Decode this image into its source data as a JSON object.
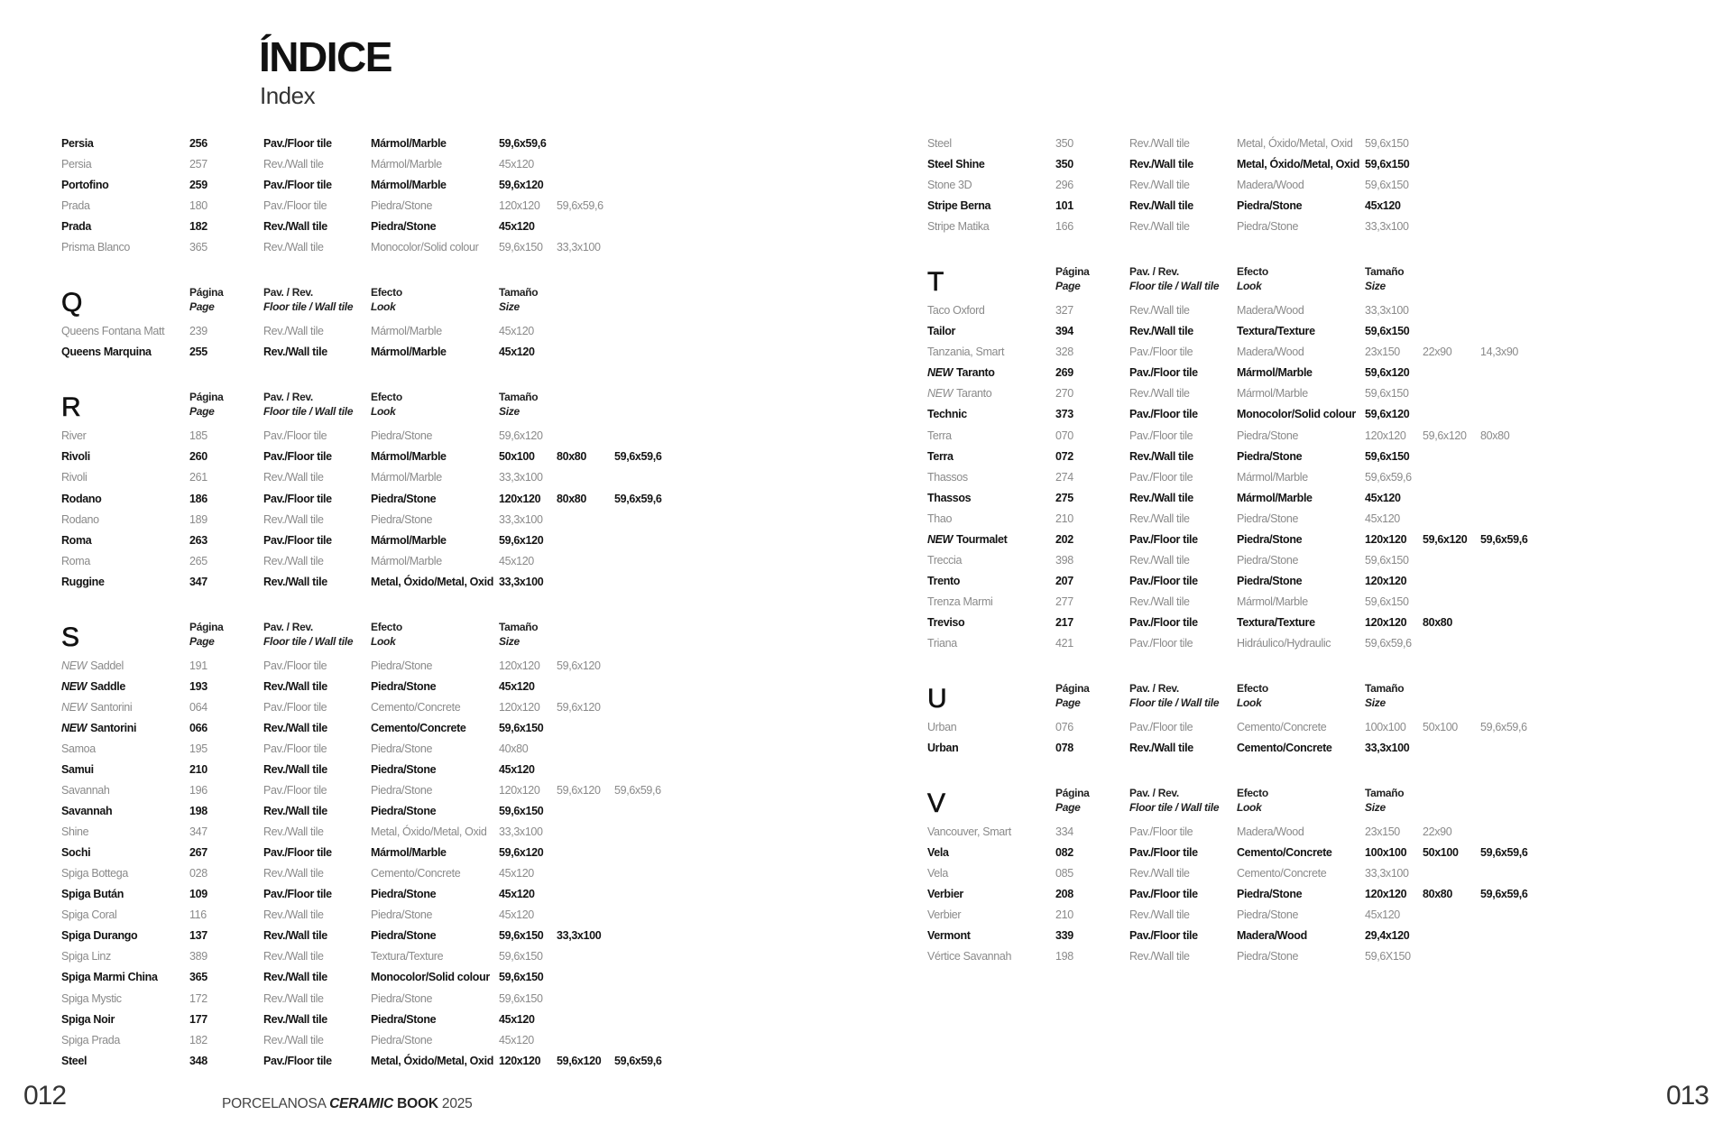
{
  "header": {
    "title": "ÍNDICE",
    "subtitle": "Index"
  },
  "column_headers": {
    "page": [
      "Página",
      "Page"
    ],
    "type": [
      "Pav. / Rev.",
      "Floor tile / Wall tile"
    ],
    "look": [
      "Efecto",
      "Look"
    ],
    "size": [
      "Tamaño",
      "Size"
    ]
  },
  "new_label": "NEW",
  "left_page": {
    "sections": [
      {
        "letter": "",
        "rows": [
          {
            "name": "Persia",
            "page": "256",
            "type": "Pav./Floor tile",
            "look": "Mármol/Marble",
            "sizes": [
              "59,6x59,6"
            ],
            "bold": true
          },
          {
            "name": "Persia",
            "page": "257",
            "type": "Rev./Wall tile",
            "look": "Mármol/Marble",
            "sizes": [
              "45x120"
            ],
            "bold": false
          },
          {
            "name": "Portofino",
            "page": "259",
            "type": "Pav./Floor tile",
            "look": "Mármol/Marble",
            "sizes": [
              "59,6x120"
            ],
            "bold": true
          },
          {
            "name": "Prada",
            "page": "180",
            "type": "Pav./Floor tile",
            "look": "Piedra/Stone",
            "sizes": [
              "120x120",
              "59,6x59,6"
            ],
            "bold": false
          },
          {
            "name": "Prada",
            "page": "182",
            "type": "Rev./Wall tile",
            "look": "Piedra/Stone",
            "sizes": [
              "45x120"
            ],
            "bold": true
          },
          {
            "name": "Prisma Blanco",
            "page": "365",
            "type": "Rev./Wall tile",
            "look": "Monocolor/Solid colour",
            "sizes": [
              "59,6x150",
              "33,3x100"
            ],
            "bold": false
          }
        ]
      },
      {
        "letter": "Q",
        "rows": [
          {
            "name": "Queens Fontana Matt",
            "page": "239",
            "type": "Rev./Wall tile",
            "look": "Mármol/Marble",
            "sizes": [
              "45x120"
            ],
            "bold": false
          },
          {
            "name": "Queens Marquina",
            "page": "255",
            "type": "Rev./Wall tile",
            "look": "Mármol/Marble",
            "sizes": [
              "45x120"
            ],
            "bold": true
          }
        ]
      },
      {
        "letter": "R",
        "rows": [
          {
            "name": "River",
            "page": "185",
            "type": "Pav./Floor tile",
            "look": "Piedra/Stone",
            "sizes": [
              "59,6x120"
            ],
            "bold": false
          },
          {
            "name": "Rivoli",
            "page": "260",
            "type": "Pav./Floor tile",
            "look": "Mármol/Marble",
            "sizes": [
              "50x100",
              "80x80",
              "59,6x59,6"
            ],
            "bold": true
          },
          {
            "name": "Rivoli",
            "page": "261",
            "type": "Rev./Wall tile",
            "look": "Mármol/Marble",
            "sizes": [
              "33,3x100"
            ],
            "bold": false
          },
          {
            "name": "Rodano",
            "page": "186",
            "type": "Pav./Floor tile",
            "look": "Piedra/Stone",
            "sizes": [
              "120x120",
              "80x80",
              "59,6x59,6"
            ],
            "bold": true
          },
          {
            "name": "Rodano",
            "page": "189",
            "type": "Rev./Wall tile",
            "look": "Piedra/Stone",
            "sizes": [
              "33,3x100"
            ],
            "bold": false
          },
          {
            "name": "Roma",
            "page": "263",
            "type": "Pav./Floor tile",
            "look": "Mármol/Marble",
            "sizes": [
              "59,6x120"
            ],
            "bold": true
          },
          {
            "name": "Roma",
            "page": "265",
            "type": "Rev./Wall tile",
            "look": "Mármol/Marble",
            "sizes": [
              "45x120"
            ],
            "bold": false
          },
          {
            "name": "Ruggine",
            "page": "347",
            "type": "Rev./Wall tile",
            "look": "Metal, Óxido/Metal, Oxid",
            "sizes": [
              "33,3x100"
            ],
            "bold": true
          }
        ]
      },
      {
        "letter": "S",
        "rows": [
          {
            "new": true,
            "name": "Saddel",
            "page": "191",
            "type": "Pav./Floor tile",
            "look": "Piedra/Stone",
            "sizes": [
              "120x120",
              "59,6x120"
            ],
            "bold": false
          },
          {
            "new": true,
            "name": "Saddle",
            "page": "193",
            "type": "Rev./Wall tile",
            "look": "Piedra/Stone",
            "sizes": [
              "45x120"
            ],
            "bold": true
          },
          {
            "new": true,
            "name": "Santorini",
            "page": "064",
            "type": "Pav./Floor tile",
            "look": "Cemento/Concrete",
            "sizes": [
              "120x120",
              "59,6x120"
            ],
            "bold": false
          },
          {
            "new": true,
            "name": "Santorini",
            "page": "066",
            "type": "Rev./Wall tile",
            "look": "Cemento/Concrete",
            "sizes": [
              "59,6x150"
            ],
            "bold": true
          },
          {
            "name": "Samoa",
            "page": "195",
            "type": "Pav./Floor tile",
            "look": "Piedra/Stone",
            "sizes": [
              "40x80"
            ],
            "bold": false
          },
          {
            "name": "Samui",
            "page": "210",
            "type": "Rev./Wall tile",
            "look": "Piedra/Stone",
            "sizes": [
              "45x120"
            ],
            "bold": true
          },
          {
            "name": "Savannah",
            "page": "196",
            "type": "Pav./Floor tile",
            "look": "Piedra/Stone",
            "sizes": [
              "120x120",
              "59,6x120",
              "59,6x59,6"
            ],
            "bold": false
          },
          {
            "name": "Savannah",
            "page": "198",
            "type": "Rev./Wall tile",
            "look": "Piedra/Stone",
            "sizes": [
              "59,6x150"
            ],
            "bold": true
          },
          {
            "name": "Shine",
            "page": "347",
            "type": "Rev./Wall tile",
            "look": "Metal, Óxido/Metal, Oxid",
            "sizes": [
              "33,3x100"
            ],
            "bold": false
          },
          {
            "name": "Sochi",
            "page": "267",
            "type": "Pav./Floor tile",
            "look": "Mármol/Marble",
            "sizes": [
              "59,6x120"
            ],
            "bold": true
          },
          {
            "name": "Spiga Bottega",
            "page": "028",
            "type": "Rev./Wall tile",
            "look": "Cemento/Concrete",
            "sizes": [
              "45x120"
            ],
            "bold": false
          },
          {
            "name": "Spiga Bután",
            "page": "109",
            "type": "Pav./Floor tile",
            "look": "Piedra/Stone",
            "sizes": [
              "45x120"
            ],
            "bold": true
          },
          {
            "name": "Spiga Coral",
            "page": "116",
            "type": "Rev./Wall tile",
            "look": "Piedra/Stone",
            "sizes": [
              "45x120"
            ],
            "bold": false
          },
          {
            "name": "Spiga Durango",
            "page": "137",
            "type": "Rev./Wall tile",
            "look": "Piedra/Stone",
            "sizes": [
              "59,6x150",
              "33,3x100"
            ],
            "bold": true
          },
          {
            "name": "Spiga Linz",
            "page": "389",
            "type": "Rev./Wall tile",
            "look": "Textura/Texture",
            "sizes": [
              "59,6x150"
            ],
            "bold": false
          },
          {
            "name": "Spiga Marmi China",
            "page": "365",
            "type": "Rev./Wall tile",
            "look": "Monocolor/Solid colour",
            "sizes": [
              "59,6x150"
            ],
            "bold": true
          },
          {
            "name": "Spiga Mystic",
            "page": "172",
            "type": "Rev./Wall tile",
            "look": "Piedra/Stone",
            "sizes": [
              "59,6x150"
            ],
            "bold": false
          },
          {
            "name": "Spiga Noir",
            "page": "177",
            "type": "Rev./Wall tile",
            "look": "Piedra/Stone",
            "sizes": [
              "45x120"
            ],
            "bold": true
          },
          {
            "name": "Spiga Prada",
            "page": "182",
            "type": "Rev./Wall tile",
            "look": "Piedra/Stone",
            "sizes": [
              "45x120"
            ],
            "bold": false
          },
          {
            "name": "Steel",
            "page": "348",
            "type": "Pav./Floor tile",
            "look": "Metal, Óxido/Metal, Oxid",
            "sizes": [
              "120x120",
              "59,6x120",
              "59,6x59,6"
            ],
            "bold": true
          }
        ]
      }
    ]
  },
  "right_page": {
    "sections": [
      {
        "letter": "",
        "rows": [
          {
            "name": "Steel",
            "page": "350",
            "type": "Rev./Wall tile",
            "look": "Metal, Óxido/Metal, Oxid",
            "sizes": [
              "59,6x150"
            ],
            "bold": false
          },
          {
            "name": "Steel Shine",
            "page": "350",
            "type": "Rev./Wall tile",
            "look": "Metal, Óxido/Metal, Oxid",
            "sizes": [
              "59,6x150"
            ],
            "bold": true
          },
          {
            "name": "Stone 3D",
            "page": "296",
            "type": "Rev./Wall tile",
            "look": "Madera/Wood",
            "sizes": [
              "59,6x150"
            ],
            "bold": false
          },
          {
            "name": "Stripe Berna",
            "page": "101",
            "type": "Rev./Wall tile",
            "look": "Piedra/Stone",
            "sizes": [
              "45x120"
            ],
            "bold": true
          },
          {
            "name": "Stripe Matika",
            "page": "166",
            "type": "Rev./Wall tile",
            "look": "Piedra/Stone",
            "sizes": [
              "33,3x100"
            ],
            "bold": false
          }
        ]
      },
      {
        "letter": "T",
        "rows": [
          {
            "name": "Taco Oxford",
            "page": "327",
            "type": "Rev./Wall tile",
            "look": "Madera/Wood",
            "sizes": [
              "33,3x100"
            ],
            "bold": false
          },
          {
            "name": "Tailor",
            "page": "394",
            "type": "Rev./Wall tile",
            "look": "Textura/Texture",
            "sizes": [
              "59,6x150"
            ],
            "bold": true
          },
          {
            "name": "Tanzania, Smart",
            "page": "328",
            "type": "Pav./Floor tile",
            "look": "Madera/Wood",
            "sizes": [
              "23x150",
              "22x90",
              "14,3x90"
            ],
            "bold": false
          },
          {
            "new": true,
            "name": "Taranto",
            "page": "269",
            "type": "Pav./Floor tile",
            "look": "Mármol/Marble",
            "sizes": [
              "59,6x120"
            ],
            "bold": true
          },
          {
            "new": true,
            "name": "Taranto",
            "page": "270",
            "type": "Rev./Wall tile",
            "look": "Mármol/Marble",
            "sizes": [
              "59,6x150"
            ],
            "bold": false
          },
          {
            "name": "Technic",
            "page": "373",
            "type": "Pav./Floor tile",
            "look": "Monocolor/Solid colour",
            "sizes": [
              "59,6x120"
            ],
            "bold": true
          },
          {
            "name": "Terra",
            "page": "070",
            "type": "Pav./Floor tile",
            "look": "Piedra/Stone",
            "sizes": [
              "120x120",
              "59,6x120",
              "80x80"
            ],
            "bold": false
          },
          {
            "name": "Terra",
            "page": "072",
            "type": "Rev./Wall tile",
            "look": "Piedra/Stone",
            "sizes": [
              "59,6x150"
            ],
            "bold": true
          },
          {
            "name": "Thassos",
            "page": "274",
            "type": "Pav./Floor tile",
            "look": "Mármol/Marble",
            "sizes": [
              "59,6x59,6"
            ],
            "bold": false
          },
          {
            "name": "Thassos",
            "page": "275",
            "type": "Rev./Wall tile",
            "look": "Mármol/Marble",
            "sizes": [
              "45x120"
            ],
            "bold": true
          },
          {
            "name": "Thao",
            "page": "210",
            "type": "Rev./Wall tile",
            "look": "Piedra/Stone",
            "sizes": [
              "45x120"
            ],
            "bold": false
          },
          {
            "new": true,
            "name": "Tourmalet",
            "page": "202",
            "type": "Pav./Floor tile",
            "look": "Piedra/Stone",
            "sizes": [
              "120x120",
              "59,6x120",
              "59,6x59,6"
            ],
            "bold": true
          },
          {
            "name": "Treccia",
            "page": "398",
            "type": "Rev./Wall tile",
            "look": "Piedra/Stone",
            "sizes": [
              "59,6x150"
            ],
            "bold": false
          },
          {
            "name": "Trento",
            "page": "207",
            "type": "Pav./Floor tile",
            "look": "Piedra/Stone",
            "sizes": [
              "120x120"
            ],
            "bold": true
          },
          {
            "name": "Trenza Marmi",
            "page": "277",
            "type": "Rev./Wall tile",
            "look": "Mármol/Marble",
            "sizes": [
              "59,6x150"
            ],
            "bold": false
          },
          {
            "name": "Treviso",
            "page": "217",
            "type": "Pav./Floor tile",
            "look": "Textura/Texture",
            "sizes": [
              "120x120",
              "80x80"
            ],
            "bold": true
          },
          {
            "name": "Triana",
            "page": "421",
            "type": "Pav./Floor tile",
            "look": "Hidráulico/Hydraulic",
            "sizes": [
              "59,6x59,6"
            ],
            "bold": false
          }
        ]
      },
      {
        "letter": "U",
        "rows": [
          {
            "name": "Urban",
            "page": "076",
            "type": "Pav./Floor tile",
            "look": "Cemento/Concrete",
            "sizes": [
              "100x100",
              "50x100",
              "59,6x59,6"
            ],
            "bold": false
          },
          {
            "name": "Urban",
            "page": "078",
            "type": "Rev./Wall tile",
            "look": "Cemento/Concrete",
            "sizes": [
              "33,3x100"
            ],
            "bold": true
          }
        ]
      },
      {
        "letter": "V",
        "rows": [
          {
            "name": "Vancouver, Smart",
            "page": "334",
            "type": "Pav./Floor tile",
            "look": "Madera/Wood",
            "sizes": [
              "23x150",
              "22x90"
            ],
            "bold": false
          },
          {
            "name": "Vela",
            "page": "082",
            "type": "Pav./Floor tile",
            "look": "Cemento/Concrete",
            "sizes": [
              "100x100",
              "50x100",
              "59,6x59,6"
            ],
            "bold": true
          },
          {
            "name": "Vela",
            "page": "085",
            "type": "Rev./Wall tile",
            "look": "Cemento/Concrete",
            "sizes": [
              "33,3x100"
            ],
            "bold": false
          },
          {
            "name": "Verbier",
            "page": "208",
            "type": "Pav./Floor tile",
            "look": "Piedra/Stone",
            "sizes": [
              "120x120",
              "80x80",
              "59,6x59,6"
            ],
            "bold": true
          },
          {
            "name": "Verbier",
            "page": "210",
            "type": "Rev./Wall tile",
            "look": "Piedra/Stone",
            "sizes": [
              "45x120"
            ],
            "bold": false
          },
          {
            "name": "Vermont",
            "page": "339",
            "type": "Pav./Floor tile",
            "look": "Madera/Wood",
            "sizes": [
              "29,4x120"
            ],
            "bold": true
          },
          {
            "name": "Vértice Savannah",
            "page": "198",
            "type": "Rev./Wall tile",
            "look": "Piedra/Stone",
            "sizes": [
              "59,6X150"
            ],
            "bold": false
          }
        ]
      }
    ]
  },
  "footer": {
    "left_page_number": "012",
    "right_page_number": "013",
    "brand": "PORCELANOSA",
    "emphasis": "CERAMIC",
    "book": "BOOK",
    "year": "2025"
  }
}
